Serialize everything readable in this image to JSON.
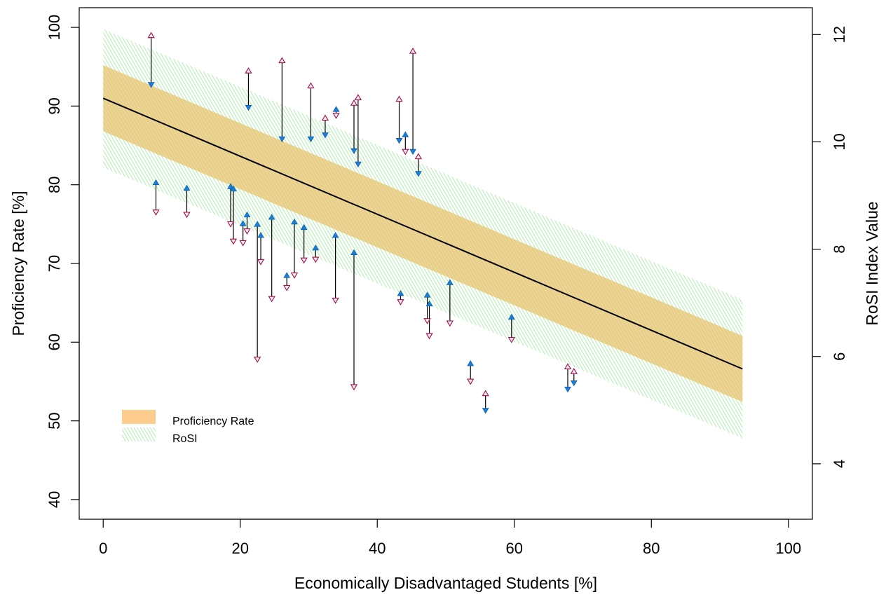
{
  "chart_data": {
    "type": "scatter",
    "title": "",
    "xlabel": "Economically Disadvantaged Students [%]",
    "ylabel": "Proficiency Rate [%]",
    "ylabel_right": "RoSI Index Value",
    "xlim": [
      -3.5,
      103.5
    ],
    "ylim": [
      37.5,
      102.5
    ],
    "ylim_right": [
      2.967,
      12.5
    ],
    "x_ticks": [
      0,
      20,
      40,
      60,
      80,
      100
    ],
    "y_ticks": [
      40,
      50,
      60,
      70,
      80,
      90,
      100
    ],
    "y_right_ticks": [
      4,
      6,
      8,
      10,
      12
    ],
    "grid": false,
    "legend_position": "bottom-left",
    "legend": [
      {
        "label": "Proficiency Rate",
        "color": "#FDCD8F"
      },
      {
        "label": "RoSI",
        "color": "#8EE88E"
      }
    ],
    "regression": {
      "x_range": [
        0,
        93.3
      ],
      "proficiency_line": [
        [
          0,
          91.0
        ],
        [
          93.3,
          56.6
        ]
      ],
      "proficiency_band_halfwidth": 4.2,
      "rosi_band_halfwidth": 8.8
    },
    "series": [
      {
        "name": "Proficiency Rate",
        "marker": "hollow-triangle",
        "color": "#A0104A",
        "points": [
          [
            7.0,
            99.0
          ],
          [
            7.7,
            76.5
          ],
          [
            12.2,
            76.2
          ],
          [
            18.6,
            75.0
          ],
          [
            19.0,
            72.8
          ],
          [
            20.4,
            72.6
          ],
          [
            21.0,
            74.1
          ],
          [
            21.2,
            94.5
          ],
          [
            22.5,
            57.8
          ],
          [
            23.0,
            70.2
          ],
          [
            24.6,
            65.5
          ],
          [
            26.1,
            95.8
          ],
          [
            26.8,
            66.9
          ],
          [
            27.9,
            68.5
          ],
          [
            29.3,
            70.4
          ],
          [
            30.3,
            92.6
          ],
          [
            31.0,
            70.5
          ],
          [
            32.4,
            88.5
          ],
          [
            33.9,
            65.3
          ],
          [
            34.0,
            88.8
          ],
          [
            36.6,
            90.4
          ],
          [
            36.6,
            54.3
          ],
          [
            37.2,
            91.1
          ],
          [
            43.2,
            90.9
          ],
          [
            43.4,
            65.1
          ],
          [
            44.1,
            84.2
          ],
          [
            45.2,
            97.0
          ],
          [
            46.0,
            83.6
          ],
          [
            47.3,
            62.7
          ],
          [
            47.6,
            60.8
          ],
          [
            50.6,
            62.4
          ],
          [
            53.6,
            55.0
          ],
          [
            55.8,
            53.5
          ],
          [
            59.6,
            60.3
          ],
          [
            67.8,
            56.9
          ],
          [
            68.7,
            56.3
          ]
        ]
      },
      {
        "name": "RoSI",
        "marker": "filled-triangle",
        "color": "#1A7FD9",
        "points": [
          [
            7.0,
            92.7
          ],
          [
            7.7,
            80.3
          ],
          [
            12.2,
            79.6
          ],
          [
            18.6,
            79.8
          ],
          [
            19.0,
            79.5
          ],
          [
            20.4,
            75.1
          ],
          [
            21.0,
            76.2
          ],
          [
            21.2,
            89.8
          ],
          [
            22.5,
            75.0
          ],
          [
            23.0,
            73.6
          ],
          [
            24.6,
            75.9
          ],
          [
            26.1,
            85.8
          ],
          [
            26.8,
            68.5
          ],
          [
            27.9,
            75.3
          ],
          [
            29.3,
            74.6
          ],
          [
            30.3,
            85.8
          ],
          [
            31.0,
            72.0
          ],
          [
            32.4,
            86.3
          ],
          [
            33.9,
            73.6
          ],
          [
            34.0,
            89.6
          ],
          [
            36.6,
            84.3
          ],
          [
            36.6,
            71.4
          ],
          [
            37.2,
            82.6
          ],
          [
            43.2,
            85.6
          ],
          [
            43.4,
            66.2
          ],
          [
            44.1,
            86.4
          ],
          [
            45.2,
            84.2
          ],
          [
            46.0,
            81.4
          ],
          [
            47.3,
            66.0
          ],
          [
            47.6,
            64.9
          ],
          [
            50.6,
            67.6
          ],
          [
            53.6,
            57.3
          ],
          [
            55.8,
            51.3
          ],
          [
            59.6,
            63.2
          ],
          [
            67.8,
            54.0
          ],
          [
            68.7,
            54.8
          ]
        ]
      }
    ]
  }
}
